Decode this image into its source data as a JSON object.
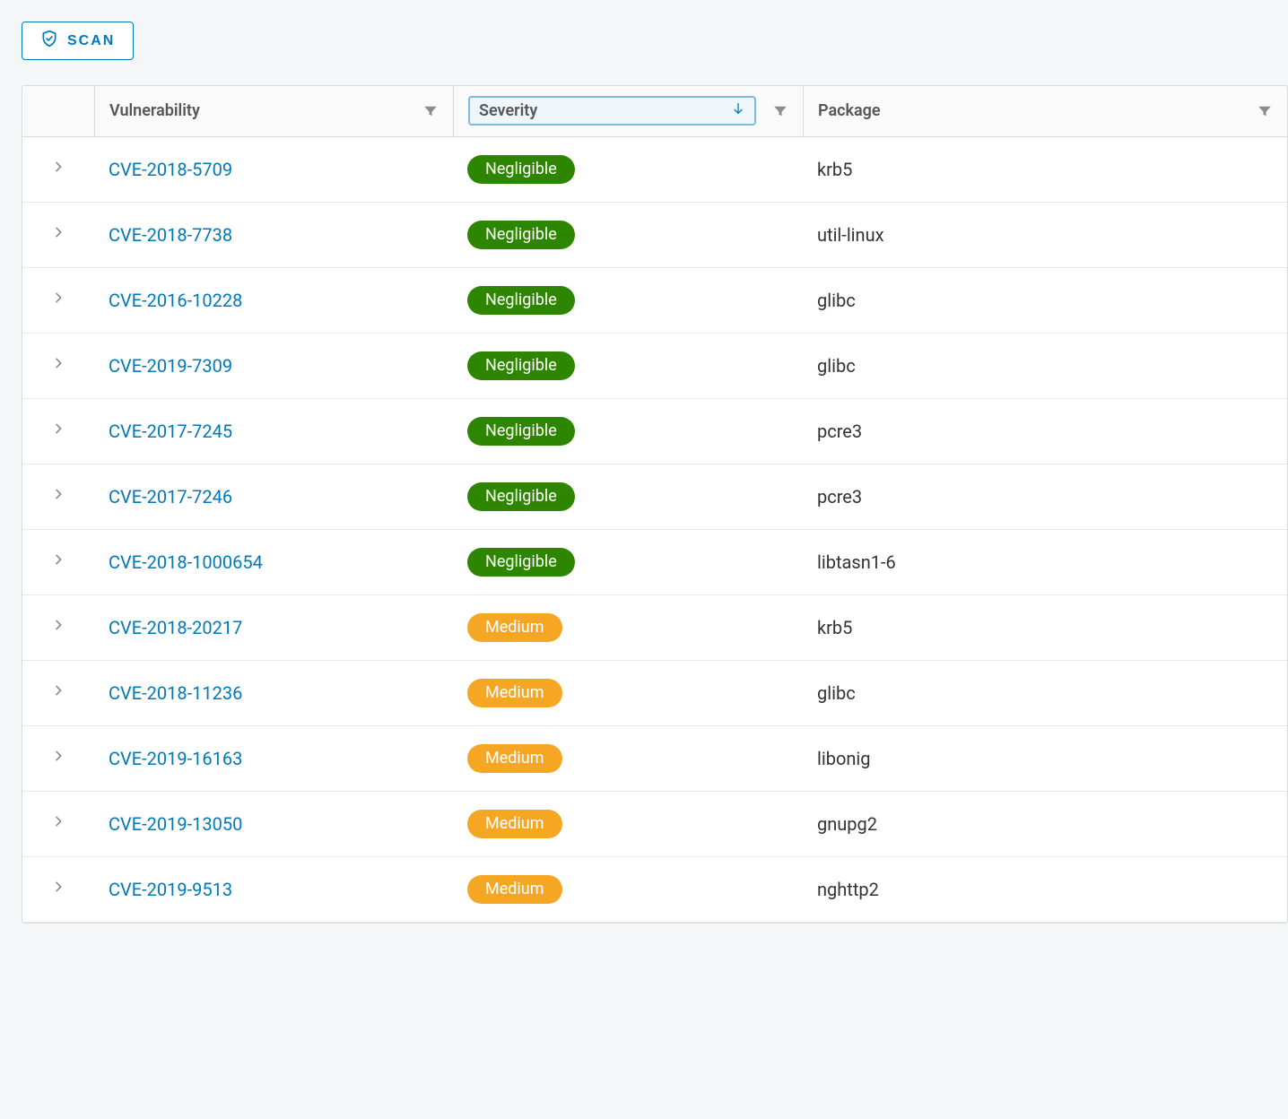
{
  "scan_button_label": "SCAN",
  "columns": {
    "vulnerability": "Vulnerability",
    "severity": "Severity",
    "package": "Package"
  },
  "sort": {
    "column": "severity",
    "direction": "asc"
  },
  "severity_colors": {
    "Negligible": "#2e8500",
    "Medium": "#f5a623"
  },
  "colors": {
    "link": "#0079b8",
    "header_bg": "#fafafa",
    "border": "#d7dbdd",
    "body_bg": "#f5f6f7",
    "sort_border": "#7fb8e0",
    "sort_bg": "#f0f7fc",
    "icon_muted": "#8c8c8c"
  },
  "rows": [
    {
      "cve": "CVE-2018-5709",
      "severity": "Negligible",
      "package": "krb5"
    },
    {
      "cve": "CVE-2018-7738",
      "severity": "Negligible",
      "package": "util-linux"
    },
    {
      "cve": "CVE-2016-10228",
      "severity": "Negligible",
      "package": "glibc"
    },
    {
      "cve": "CVE-2019-7309",
      "severity": "Negligible",
      "package": "glibc"
    },
    {
      "cve": "CVE-2017-7245",
      "severity": "Negligible",
      "package": "pcre3"
    },
    {
      "cve": "CVE-2017-7246",
      "severity": "Negligible",
      "package": "pcre3"
    },
    {
      "cve": "CVE-2018-1000654",
      "severity": "Negligible",
      "package": "libtasn1-6"
    },
    {
      "cve": "CVE-2018-20217",
      "severity": "Medium",
      "package": "krb5"
    },
    {
      "cve": "CVE-2018-11236",
      "severity": "Medium",
      "package": "glibc"
    },
    {
      "cve": "CVE-2019-16163",
      "severity": "Medium",
      "package": "libonig"
    },
    {
      "cve": "CVE-2019-13050",
      "severity": "Medium",
      "package": "gnupg2"
    },
    {
      "cve": "CVE-2019-9513",
      "severity": "Medium",
      "package": "nghttp2"
    }
  ]
}
